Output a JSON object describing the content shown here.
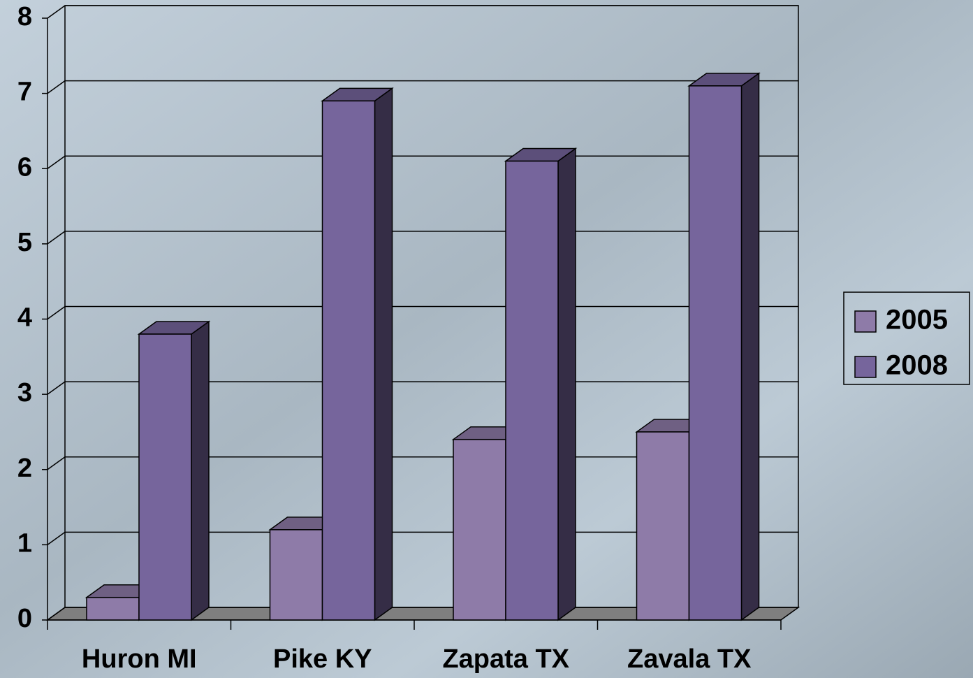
{
  "chart_data": {
    "type": "bar3d",
    "categories": [
      "Huron MI",
      "Pike KY",
      "Zapata TX",
      "Zavala TX"
    ],
    "series": [
      {
        "name": "2005",
        "color": "#8e7ba8",
        "values": [
          0.3,
          1.2,
          2.4,
          2.5
        ]
      },
      {
        "name": "2008",
        "color": "#76659c",
        "values": [
          3.8,
          6.9,
          6.1,
          7.1
        ]
      }
    ],
    "ylim": [
      0,
      8
    ],
    "yticks": [
      0,
      1,
      2,
      3,
      4,
      5,
      6,
      7,
      8
    ],
    "grid": true,
    "legend": "right"
  }
}
